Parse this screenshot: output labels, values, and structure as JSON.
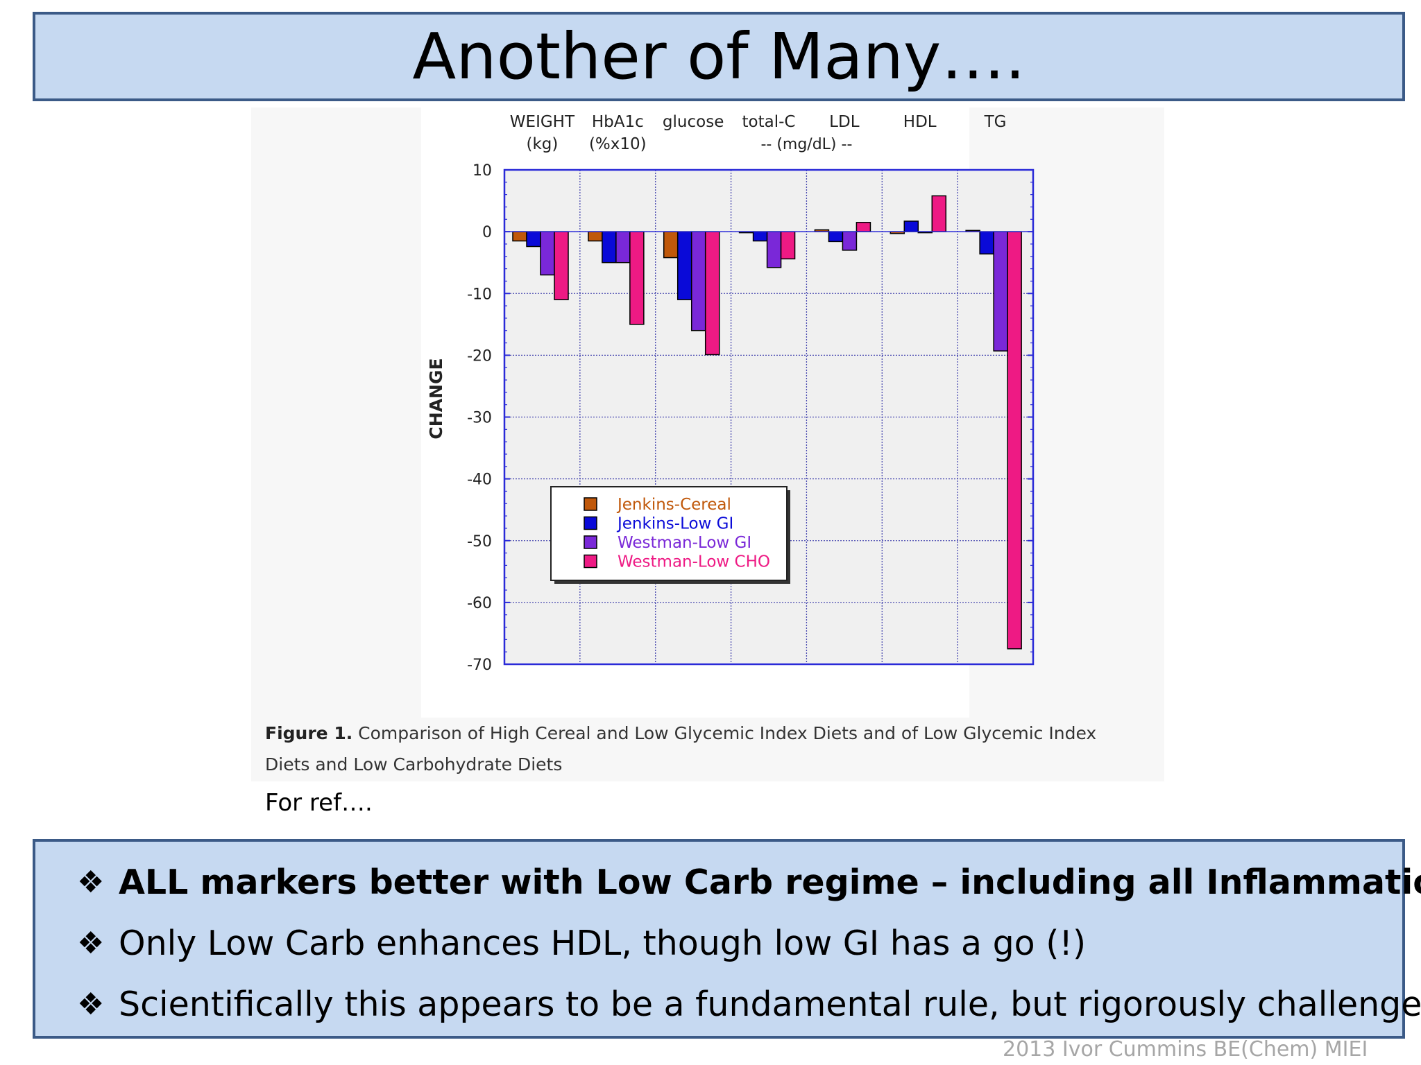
{
  "slide": {
    "title": "Another of Many….",
    "for_ref": "For ref….",
    "footer": "2013 Ivor Cummins BE(Chem) MIEI"
  },
  "caption": {
    "label": "Figure 1.",
    "text": " Comparison of High Cereal and Low Glycemic Index Diets and of Low Glycemic Index Diets and Low Carbohydrate Diets"
  },
  "bullets": [
    {
      "mark": "❖",
      "text": "ALL markers better with Low Carb regime – including all Inflammation"
    },
    {
      "mark": "❖",
      "text": "Only Low Carb enhances HDL, though low GI has a go (!)"
    },
    {
      "mark": "❖",
      "text": "Scientifically this appears to be a fundamental rule, but rigorously challenged?"
    }
  ],
  "chart_data": {
    "type": "bar",
    "ylabel": "CHANGE",
    "ylim": [
      -70,
      10
    ],
    "yticks": [
      10,
      0,
      -10,
      -20,
      -30,
      -40,
      -50,
      -60,
      -70
    ],
    "grid": true,
    "legend_position": "lower-left",
    "categories": [
      {
        "line1": "WEIGHT",
        "line2": "(kg)"
      },
      {
        "line1": "HbA1c",
        "line2": "(%x10)"
      },
      {
        "line1": "glucose",
        "line2": ""
      },
      {
        "line1": "total-C",
        "line2": ""
      },
      {
        "line1": "LDL",
        "line2": ""
      },
      {
        "line1": "HDL",
        "line2": ""
      },
      {
        "line1": "TG",
        "line2": ""
      }
    ],
    "group_note": "-- (mg/dL) --",
    "series": [
      {
        "name": "Jenkins-Cereal",
        "color": "#c0580a",
        "values": [
          -1.5,
          -1.5,
          -4.2,
          0,
          0.3,
          -0.3,
          0.2
        ]
      },
      {
        "name": "Jenkins-Low GI",
        "color": "#0a0ad8",
        "values": [
          -2.4,
          -5,
          -11,
          -1.5,
          -1.6,
          1.7,
          -3.6
        ]
      },
      {
        "name": "Westman-Low GI",
        "color": "#7a28d8",
        "values": [
          -7,
          -5,
          -16,
          -5.8,
          -3,
          0,
          -19.3
        ]
      },
      {
        "name": "Westman-Low CHO",
        "color": "#ee1a84",
        "values": [
          -11,
          -15,
          -19.9,
          -4.4,
          1.5,
          5.8,
          -67.5
        ]
      }
    ]
  }
}
